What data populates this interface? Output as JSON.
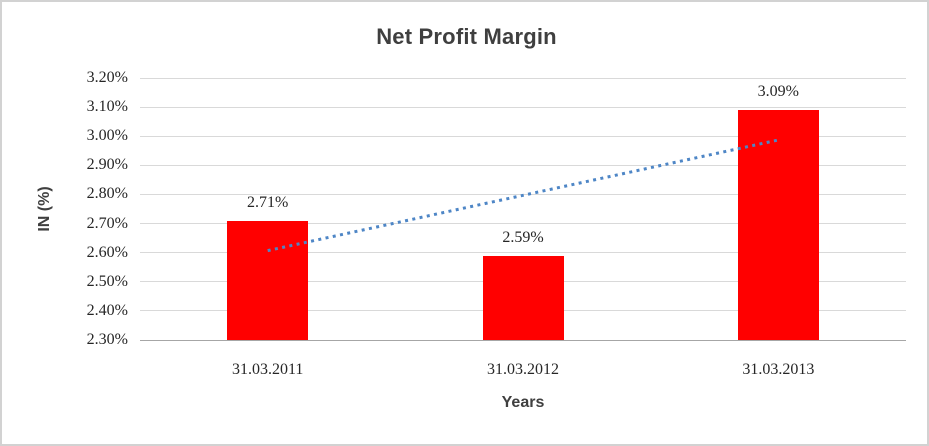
{
  "frame": {
    "border_color": "#D2D2D2",
    "background": "#FFFFFF"
  },
  "chart_data": {
    "type": "bar",
    "title": "Net Profit Margin",
    "xlabel": "Years",
    "ylabel": "IN (%)",
    "categories": [
      "31.03.2011",
      "31.03.2012",
      "31.03.2013"
    ],
    "values": [
      2.71,
      2.59,
      3.09
    ],
    "data_labels": [
      "2.71%",
      "2.59%",
      "3.09%"
    ],
    "ylim": [
      2.3,
      3.2
    ],
    "ytick_values": [
      3.2,
      3.1,
      3.0,
      2.9,
      2.8,
      2.7,
      2.6,
      2.5,
      2.4,
      2.3
    ],
    "ytick_labels": [
      "3.20%",
      "3.10%",
      "3.00%",
      "2.90%",
      "2.80%",
      "2.70%",
      "2.60%",
      "2.50%",
      "2.40%",
      "2.30%"
    ],
    "grid": true,
    "legend": "none",
    "bar_color": "#FF0000",
    "gridline_color": "#D9D9D9",
    "axis_line_color": "#A6A6A6",
    "tick_text_color": "#262626",
    "title_color": "#3F3F3F",
    "trendline": {
      "type": "linear",
      "style": "dotted",
      "color": "#4E86C6",
      "start_value": 2.607,
      "end_value": 2.987
    }
  }
}
